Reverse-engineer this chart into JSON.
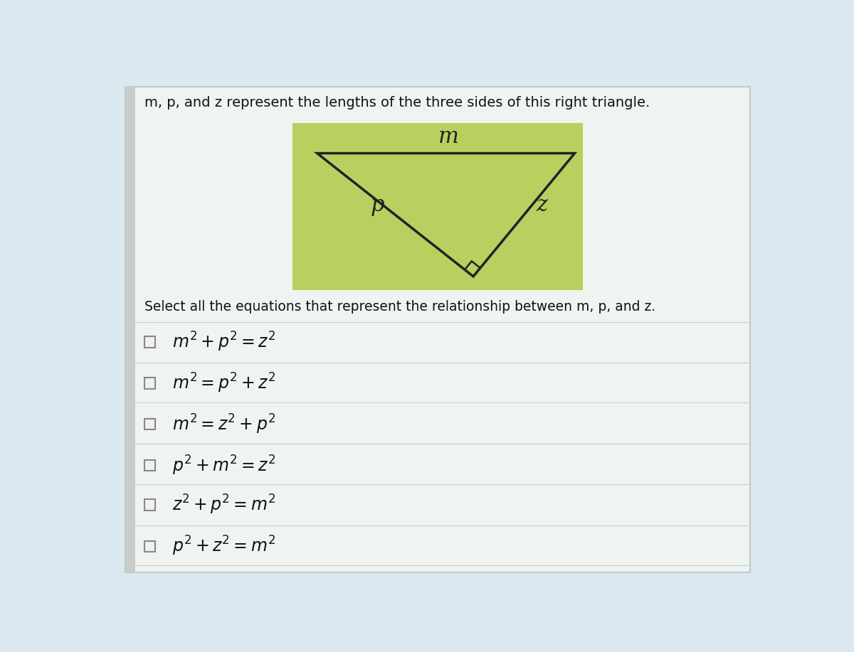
{
  "title_text": "m, p, and z represent the lengths of the three sides of this right triangle.",
  "select_text": "Select all the equations that represent the relationship between m, p, and z.",
  "eq_latex": [
    "$m^2 + p^2 = z^2$",
    "$m^2 = p^2 + z^2$",
    "$m^2 = z^2 + p^2$",
    "$p^2 + m^2 = z^2$",
    "$z^2 + p^2 = m^2$",
    "$p^2 + z^2 = m^2$"
  ],
  "page_bg": "#dce8f0",
  "panel_bg": "#e8eef2",
  "panel_edge": "#c0c8cc",
  "left_bar_color": "#c0c8cc",
  "tri_bg": "#b8d060",
  "tri_edge": "#222222",
  "row_line_color": "#c8cfc8",
  "checkbox_edge": "#888888",
  "checkbox_fill": "#f0f0f0",
  "text_color": "#111111",
  "label_color": "#222222",
  "title_fontsize": 14,
  "select_fontsize": 13.5,
  "eq_fontsize": 17
}
